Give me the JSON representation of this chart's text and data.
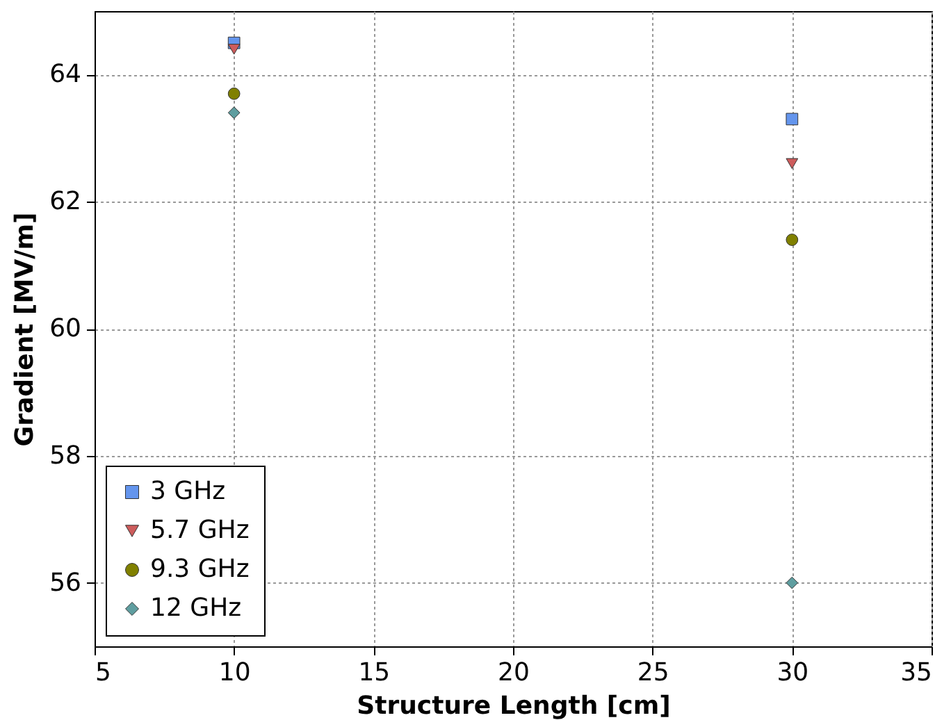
{
  "chart_data": {
    "type": "scatter",
    "xlabel": "Structure Length [cm]",
    "ylabel": "Gradient [MV/m]",
    "x": [
      10,
      30
    ],
    "series": [
      {
        "name": "3 GHz",
        "color": "#6495ed",
        "marker": "square",
        "values": [
          64.5,
          63.3
        ]
      },
      {
        "name": "5.7 GHz",
        "color": "#cd5c5c",
        "marker": "triangle",
        "values": [
          64.4,
          62.6
        ]
      },
      {
        "name": "9.3 GHz",
        "color": "#808000",
        "marker": "circle",
        "values": [
          63.7,
          61.4
        ]
      },
      {
        "name": "12 GHz",
        "color": "#5f9ea0",
        "marker": "diamond",
        "values": [
          63.4,
          56.0
        ]
      }
    ],
    "xlim": [
      5,
      35
    ],
    "xticks": [
      5,
      10,
      15,
      20,
      25,
      30,
      35
    ],
    "ylim": [
      55,
      65
    ],
    "yticks": [
      56,
      58,
      60,
      62,
      64
    ],
    "grid": true,
    "legend": "bottom left"
  }
}
